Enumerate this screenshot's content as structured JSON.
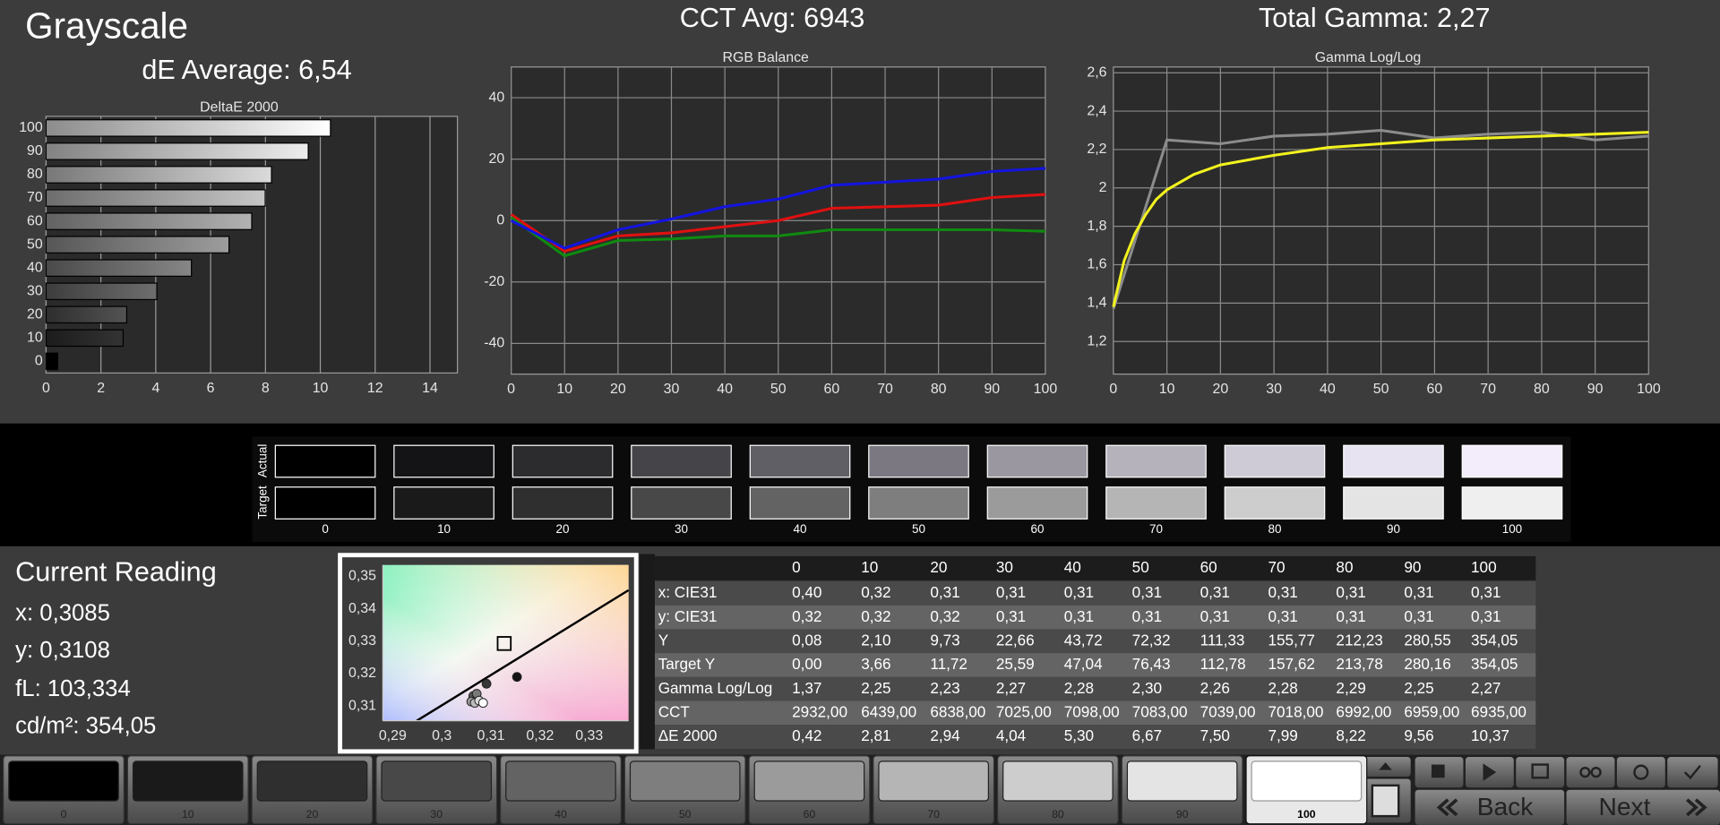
{
  "title": "Grayscale",
  "de_average": "dE Average: 6,54",
  "cct_avg": "CCT Avg: 6943",
  "total_gamma": "Total Gamma: 2,27",
  "chart_data": [
    {
      "type": "bar",
      "title": "DeltaE 2000",
      "categories": [
        "100",
        "90",
        "80",
        "70",
        "60",
        "50",
        "40",
        "30",
        "20",
        "10",
        "0"
      ],
      "values": [
        10.37,
        9.56,
        8.22,
        7.99,
        7.5,
        6.67,
        5.3,
        4.04,
        2.94,
        2.81,
        0.42
      ],
      "xlim": [
        0,
        15
      ],
      "xticks": [
        0,
        2,
        4,
        6,
        8,
        10,
        12,
        14
      ],
      "grid": true
    },
    {
      "type": "line",
      "title": "RGB Balance",
      "x": [
        0,
        10,
        20,
        30,
        40,
        50,
        60,
        70,
        80,
        90,
        100
      ],
      "xlim": [
        0,
        100
      ],
      "xticks": [
        0,
        10,
        20,
        30,
        40,
        50,
        60,
        70,
        80,
        90,
        100
      ],
      "ylim": [
        -50,
        50
      ],
      "yticks": [
        -40,
        -20,
        0,
        20,
        40
      ],
      "grid": true,
      "series": [
        {
          "color": "#e01010",
          "values": [
            2,
            -10,
            -5,
            -4,
            -2,
            0,
            4,
            4.5,
            5,
            7.5,
            8.5
          ]
        },
        {
          "color": "#108a10",
          "values": [
            1,
            -11.5,
            -6.5,
            -6,
            -5,
            -5,
            -3,
            -3,
            -3,
            -3,
            -3.5
          ]
        },
        {
          "color": "#1414e0",
          "values": [
            0,
            -9,
            -3,
            0.5,
            4.5,
            7,
            11.5,
            12.5,
            13.5,
            16,
            17
          ]
        }
      ]
    },
    {
      "type": "line",
      "title": "Gamma Log/Log",
      "xlim": [
        0,
        100
      ],
      "xticks": [
        0,
        10,
        20,
        30,
        40,
        50,
        60,
        70,
        80,
        90,
        100
      ],
      "ylim": [
        1.03,
        2.63
      ],
      "yticks": [
        {
          "value": 1.2,
          "label": "1,2"
        },
        {
          "value": 1.4,
          "label": "1,4"
        },
        {
          "value": 1.6,
          "label": "1,6"
        },
        {
          "value": 1.8,
          "label": "1,8"
        },
        2,
        {
          "value": 2.2,
          "label": "2,2"
        },
        {
          "value": 2.4,
          "label": "2,4"
        },
        {
          "value": 2.6,
          "label": "2,6"
        }
      ],
      "grid": true,
      "series": [
        {
          "color": "#8c8c8c",
          "x": [
            0,
            10,
            20,
            30,
            40,
            50,
            60,
            70,
            80,
            90,
            100
          ],
          "values": [
            1.37,
            2.25,
            2.23,
            2.27,
            2.28,
            2.3,
            2.26,
            2.28,
            2.29,
            2.25,
            2.27
          ]
        },
        {
          "color": "#f2f21e",
          "x": [
            0,
            2,
            4,
            6,
            8,
            10,
            15,
            20,
            30,
            40,
            50,
            60,
            70,
            80,
            90,
            100
          ],
          "values": [
            1.38,
            1.62,
            1.76,
            1.86,
            1.94,
            1.99,
            2.07,
            2.12,
            2.17,
            2.21,
            2.23,
            2.25,
            2.26,
            2.27,
            2.28,
            2.29
          ]
        }
      ]
    },
    {
      "type": "scatter",
      "xlim": [
        0.288,
        0.338
      ],
      "xticks": [
        {
          "value": 0.29,
          "label": "0,29"
        },
        {
          "value": 0.3,
          "label": "0,3"
        },
        {
          "value": 0.31,
          "label": "0,31"
        },
        {
          "value": 0.32,
          "label": "0,32"
        },
        {
          "value": 0.33,
          "label": "0,33"
        }
      ],
      "ylim": [
        0.3055,
        0.3535
      ],
      "yticks": [
        {
          "value": 0.31,
          "label": "0,31"
        },
        {
          "value": 0.32,
          "label": "0,32"
        },
        {
          "value": 0.33,
          "label": "0,33"
        },
        {
          "value": 0.34,
          "label": "0,34"
        },
        {
          "value": 0.35,
          "label": "0,35"
        }
      ],
      "x": [
        0.3153,
        0.3091,
        0.3064,
        0.3071,
        0.306,
        0.3067,
        0.3076,
        0.3084
      ],
      "y": [
        0.319,
        0.3169,
        0.3131,
        0.3138,
        0.3114,
        0.311,
        0.3117,
        0.311
      ],
      "target": {
        "x": 0.3127,
        "y": 0.3293
      }
    }
  ],
  "swatches": {
    "actual_label": "Actual",
    "target_label": "Target",
    "labels": [
      "0",
      "10",
      "20",
      "30",
      "40",
      "50",
      "60",
      "70",
      "80",
      "90",
      "100"
    ],
    "actual_colors": [
      "#000000",
      "#141316",
      "#2c2b2e",
      "#454448",
      "#615f66",
      "#7b7882",
      "#9a97a0",
      "#b5b2bb",
      "#cfcbd6",
      "#e8e3f0",
      "#f3ecfa"
    ],
    "target_colors": [
      "#000000",
      "#1a1a1a",
      "#2f2f2f",
      "#484848",
      "#636363",
      "#7e7e7e",
      "#9b9b9b",
      "#b5b5b5",
      "#cdcdcd",
      "#e4e4e4",
      "#efefef"
    ]
  },
  "reading": {
    "title": "Current Reading",
    "lines": [
      "x: 0,3085",
      "y: 0,3108",
      "fL: 103,334",
      "cd/m²: 354,05"
    ]
  },
  "table": {
    "header": [
      "0",
      "10",
      "20",
      "30",
      "40",
      "50",
      "60",
      "70",
      "80",
      "90",
      "100"
    ],
    "rows": [
      [
        "x: CIE31",
        "0,40",
        "0,32",
        "0,31",
        "0,31",
        "0,31",
        "0,31",
        "0,31",
        "0,31",
        "0,31",
        "0,31",
        "0,31"
      ],
      [
        "y: CIE31",
        "0,32",
        "0,32",
        "0,32",
        "0,31",
        "0,31",
        "0,31",
        "0,31",
        "0,31",
        "0,31",
        "0,31",
        "0,31"
      ],
      [
        "Y",
        "0,08",
        "2,10",
        "9,73",
        "22,66",
        "43,72",
        "72,32",
        "111,33",
        "155,77",
        "212,23",
        "280,55",
        "354,05"
      ],
      [
        "Target Y",
        "0,00",
        "3,66",
        "11,72",
        "25,59",
        "47,04",
        "76,43",
        "112,78",
        "157,62",
        "213,78",
        "280,16",
        "354,05"
      ],
      [
        "Gamma Log/Log",
        "1,37",
        "2,25",
        "2,23",
        "2,27",
        "2,28",
        "2,30",
        "2,26",
        "2,28",
        "2,29",
        "2,25",
        "2,27"
      ],
      [
        "CCT",
        "2932,00",
        "6439,00",
        "6838,00",
        "7025,00",
        "7098,00",
        "7083,00",
        "7039,00",
        "7018,00",
        "6992,00",
        "6959,00",
        "6935,00"
      ],
      [
        "ΔE 2000",
        "0,42",
        "2,81",
        "2,94",
        "4,04",
        "5,30",
        "6,67",
        "7,50",
        "7,99",
        "8,22",
        "9,56",
        "10,37"
      ]
    ]
  },
  "toolbar": {
    "levels": [
      "0",
      "10",
      "20",
      "30",
      "40",
      "50",
      "60",
      "70",
      "80",
      "90",
      "100"
    ],
    "back": "Back",
    "next": "Next"
  }
}
